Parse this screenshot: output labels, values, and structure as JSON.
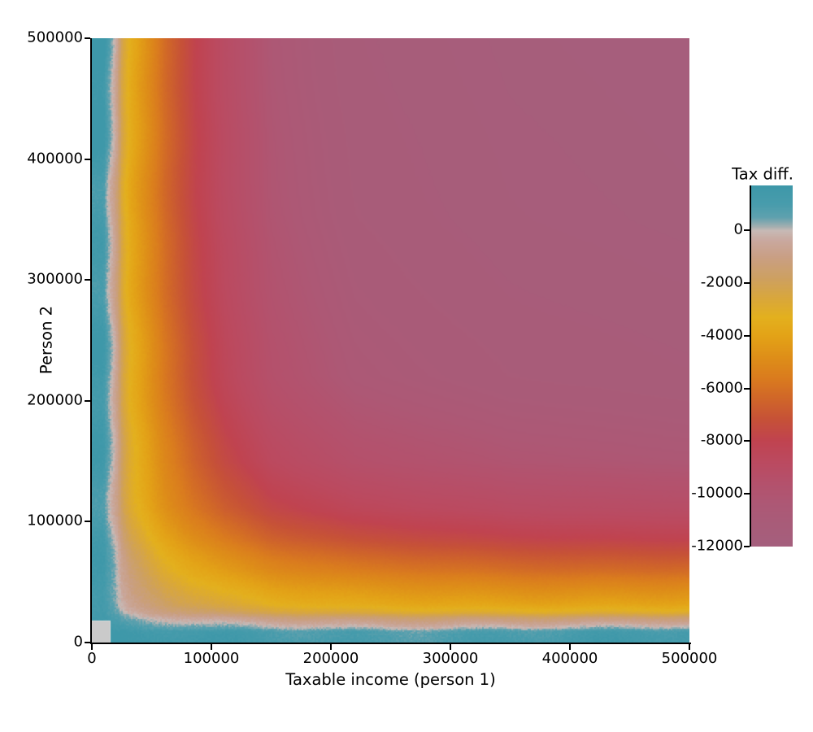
{
  "figure": {
    "background": "#ffffff",
    "text_color": "#000000"
  },
  "chart_data": {
    "type": "heatmap",
    "title": "",
    "xlabel": "Taxable income (person 1)",
    "ylabel": "Person 2",
    "xlim": [
      0,
      500000
    ],
    "ylim": [
      0,
      500000
    ],
    "x_tick_values": [
      0,
      100000,
      200000,
      300000,
      400000,
      500000
    ],
    "x_tick_labels": [
      "0",
      "100000",
      "200000",
      "300000",
      "400000",
      "500000"
    ],
    "y_tick_values": [
      0,
      100000,
      200000,
      300000,
      400000,
      500000
    ],
    "y_tick_labels": [
      "0",
      "100000",
      "200000",
      "300000",
      "400000",
      "500000"
    ],
    "grid": false,
    "colorbar": {
      "label": "Tax diff.",
      "tick_values": [
        0,
        -2000,
        -4000,
        -6000,
        -8000,
        -10000,
        -12000
      ],
      "tick_labels": [
        "0",
        "-2000",
        "-4000",
        "-6000",
        "-8000",
        "-10000",
        "-12000"
      ],
      "vmax": 1700,
      "vmin": -12000,
      "position": "right"
    },
    "colormap_stops": [
      [
        -12000,
        "#A55F7D"
      ],
      [
        -11200,
        "#A85C79"
      ],
      [
        -10400,
        "#AD5875"
      ],
      [
        -9600,
        "#B4516C"
      ],
      [
        -8800,
        "#BB4A60"
      ],
      [
        -8000,
        "#C04350"
      ],
      [
        -7200,
        "#C65138"
      ],
      [
        -6400,
        "#D06629"
      ],
      [
        -5600,
        "#DA7C1E"
      ],
      [
        -4800,
        "#DE8F18"
      ],
      [
        -4000,
        "#E3A317"
      ],
      [
        -3300,
        "#E3B01E"
      ],
      [
        -2600,
        "#D9A73B"
      ],
      [
        -1800,
        "#CDA062"
      ],
      [
        -1000,
        "#C99F85"
      ],
      [
        -400,
        "#C9A89E"
      ],
      [
        0,
        "#C7BAB6"
      ],
      [
        150,
        "#A3AFB0"
      ],
      [
        500,
        "#5FA1AE"
      ],
      [
        1000,
        "#489CAC"
      ],
      [
        1700,
        "#3E98A9"
      ]
    ],
    "surface_model": {
      "description": "Tax difference is slightly positive (~+1000, teal) when either person's taxable income is below ~13000 (zero contour, irregular white line), then falls steeply through yellow/orange/red bands and saturates near -12000 (mauve) when both incomes are high. v = base - span * S(h(x)*h(y)) plus small boundary noise.",
      "base": 1000,
      "span": 13800,
      "zero_contour_income": 13000,
      "h_profile_anchors": [
        [
          0,
          0
        ],
        [
          9000,
          0
        ],
        [
          12000,
          0.065
        ],
        [
          20000,
          0.174
        ],
        [
          25000,
          0.283
        ],
        [
          32000,
          0.355
        ],
        [
          45000,
          0.428
        ],
        [
          60000,
          0.515
        ],
        [
          85000,
          0.623
        ],
        [
          110000,
          0.703
        ],
        [
          150000,
          0.79
        ],
        [
          220000,
          0.862
        ],
        [
          350000,
          0.906
        ],
        [
          500000,
          0.928
        ]
      ],
      "s_remap_anchors": [
        [
          0,
          0
        ],
        [
          0.02,
          0.022
        ],
        [
          0.065,
          0.065
        ],
        [
          0.174,
          0.174
        ],
        [
          0.28,
          0.3
        ],
        [
          0.43,
          0.47
        ],
        [
          0.51,
          0.57
        ],
        [
          0.62,
          0.7
        ],
        [
          0.7,
          0.78
        ],
        [
          0.764,
          0.865
        ],
        [
          0.8,
          0.89
        ],
        [
          0.86,
          0.93
        ],
        [
          1.0,
          1.0
        ]
      ]
    },
    "masked_region": {
      "x_max": 15500,
      "y_max": 17500,
      "color": "#CACACA"
    },
    "values_grid": {
      "x": [
        0,
        100000,
        200000,
        300000,
        400000,
        500000
      ],
      "y": [
        0,
        100000,
        200000,
        300000,
        400000,
        500000
      ],
      "tax_diff": [
        [
          null,
          1000,
          1000,
          1000,
          1000,
          1000
        ],
        [
          1000,
          -5900,
          -8000,
          -8400,
          -8600,
          -8800
        ],
        [
          1000,
          -8000,
          -10700,
          -10900,
          -11200,
          -11300
        ],
        [
          1000,
          -8400,
          -10900,
          -11200,
          -11500,
          -11600
        ],
        [
          1000,
          -8600,
          -11200,
          -11500,
          -11700,
          -11800
        ],
        [
          1000,
          -8800,
          -11300,
          -11600,
          -11800,
          -11900
        ]
      ]
    }
  }
}
